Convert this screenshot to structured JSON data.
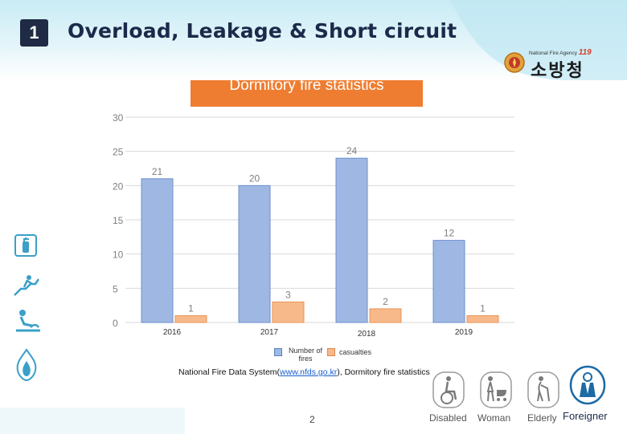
{
  "header": {
    "number": "1",
    "title": "Overload, Leakage & Short circuit"
  },
  "logo": {
    "small_text": "National Fire Agency",
    "brand_text": "119",
    "korean_name": "소방청"
  },
  "chart_title": "Dormitory fire statistics",
  "chart_data": {
    "type": "bar",
    "title": "Dormitory fire statistics",
    "categories": [
      "2016",
      "2017",
      "2018",
      "2019"
    ],
    "series": [
      {
        "name": "Number of fires",
        "values": [
          21,
          20,
          24,
          12
        ],
        "color": "#9fb8e3"
      },
      {
        "name": "casualties",
        "values": [
          1,
          3,
          2,
          1
        ],
        "color": "#f7b98a"
      }
    ],
    "ylim": [
      0,
      30
    ],
    "yticks": [
      "0",
      "5",
      "10",
      "15",
      "20",
      "25",
      "30"
    ],
    "grid": true,
    "legend_placement": "bottom",
    "xlabel": "",
    "ylabel": ""
  },
  "legend": {
    "fires_label": "Number of fires",
    "casualties_label": "casualties"
  },
  "source": {
    "prefix": "National Fire Data System(",
    "link": "www.nfds.go.kr",
    "suffix": "), Dormitory fire statistics"
  },
  "page_number": "2",
  "categories_bar": {
    "items": [
      "Disabled",
      "Woman",
      "Elderly",
      "Foreigner"
    ]
  },
  "colors": {
    "header_text": "#1b2a4a",
    "title_box": "#ee7d31",
    "fires_bar": "#9fb8e3",
    "casualties_bar": "#f7b98a"
  }
}
